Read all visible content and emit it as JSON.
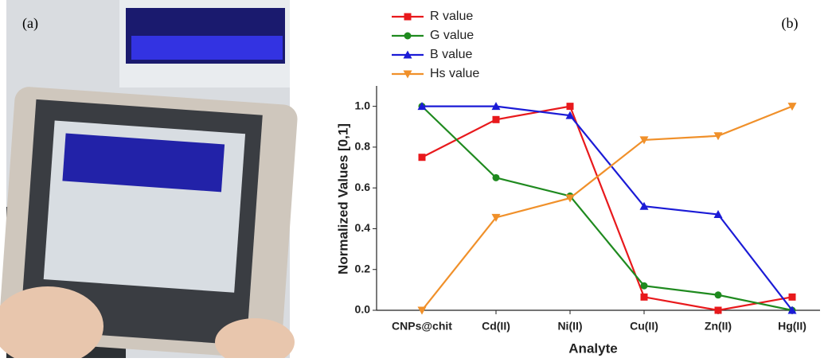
{
  "panel_labels": [
    "(a)",
    "(b)"
  ],
  "chart_data": {
    "type": "line",
    "x_label": "Analyte",
    "y_label": "Normalized Values [0,1]",
    "categories": [
      "CNPs@chit",
      "Cd(II)",
      "Ni(II)",
      "Cu(II)",
      "Zn(II)",
      "Hg(II)"
    ],
    "series": [
      {
        "name": "R value",
        "color": "#e8191c",
        "marker": "square",
        "values": [
          0.75,
          0.935,
          1.0,
          0.065,
          0.0,
          0.065
        ]
      },
      {
        "name": "G value",
        "color": "#1f8a1f",
        "marker": "circle",
        "values": [
          1.0,
          0.65,
          0.56,
          0.12,
          0.075,
          0.0
        ]
      },
      {
        "name": "B value",
        "color": "#1b1bd6",
        "marker": "triangle-up",
        "values": [
          1.0,
          1.0,
          0.955,
          0.51,
          0.47,
          0.0
        ]
      },
      {
        "name": "Hs value",
        "color": "#f0902a",
        "marker": "triangle-down",
        "values": [
          0.0,
          0.455,
          0.55,
          0.835,
          0.855,
          1.0
        ]
      }
    ],
    "ylim": [
      0,
      1.1
    ],
    "yticks": [
      {
        "value": 0,
        "label": "0.0"
      },
      {
        "value": 0.2,
        "label": "0.2"
      },
      {
        "value": 0.4,
        "label": "0.4"
      },
      {
        "value": 0.6,
        "label": "0.6"
      },
      {
        "value": 0.8,
        "label": "0.8"
      },
      {
        "value": 1.0,
        "label": "1.0"
      }
    ],
    "grid": false
  }
}
